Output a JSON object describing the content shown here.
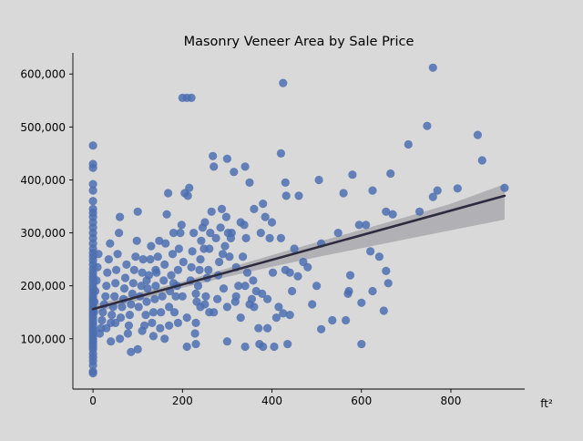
{
  "chart_data": {
    "type": "scatter",
    "title": "Masonry Veneer Area by Sale Price",
    "xlabel": "ft²",
    "ylabel": "",
    "xlim": [
      -45,
      965
    ],
    "ylim": [
      5000,
      640000
    ],
    "xticks": [
      0,
      200,
      400,
      600,
      800
    ],
    "xtick_labels": [
      "0",
      "200",
      "400",
      "600",
      "800"
    ],
    "yticks": [
      100000,
      200000,
      300000,
      400000,
      500000,
      600000
    ],
    "ytick_labels": [
      "100,000",
      "200,000",
      "300,000",
      "400,000",
      "500,000",
      "600,000"
    ],
    "grid": false,
    "colors": {
      "points": "#4c6fb0",
      "trend_line": "#2e2a3f",
      "confidence_band": "#a3a3a8",
      "background": "#d9d9d9"
    },
    "trend_line": {
      "x": [
        0,
        920
      ],
      "y": [
        156000,
        370000
      ]
    },
    "confidence_band": {
      "x": [
        0,
        100,
        200,
        300,
        400,
        500,
        600,
        700,
        800,
        920
      ],
      "lower": [
        148000,
        172000,
        196000,
        217000,
        236000,
        254000,
        271000,
        288000,
        305000,
        325000
      ],
      "upper": [
        164000,
        186000,
        208000,
        233000,
        258000,
        282000,
        306000,
        330000,
        355000,
        392000
      ]
    },
    "points": [
      [
        0,
        465000
      ],
      [
        0,
        430000
      ],
      [
        0,
        423000
      ],
      [
        0,
        392000
      ],
      [
        0,
        380000
      ],
      [
        0,
        360000
      ],
      [
        0,
        345000
      ],
      [
        0,
        338000
      ],
      [
        0,
        330000
      ],
      [
        0,
        320000
      ],
      [
        0,
        310000
      ],
      [
        0,
        300000
      ],
      [
        0,
        290000
      ],
      [
        0,
        280000
      ],
      [
        0,
        270000
      ],
      [
        0,
        262000
      ],
      [
        0,
        255000
      ],
      [
        0,
        248000
      ],
      [
        0,
        240000
      ],
      [
        0,
        232000
      ],
      [
        0,
        225000
      ],
      [
        0,
        218000
      ],
      [
        0,
        212000
      ],
      [
        0,
        205000
      ],
      [
        0,
        198000
      ],
      [
        0,
        192000
      ],
      [
        0,
        186000
      ],
      [
        0,
        180000
      ],
      [
        0,
        175000
      ],
      [
        0,
        170000
      ],
      [
        0,
        165000
      ],
      [
        0,
        160000
      ],
      [
        0,
        155000
      ],
      [
        0,
        150000
      ],
      [
        0,
        145000
      ],
      [
        0,
        140000
      ],
      [
        0,
        135000
      ],
      [
        0,
        130000
      ],
      [
        0,
        125000
      ],
      [
        0,
        120000
      ],
      [
        0,
        115000
      ],
      [
        0,
        110000
      ],
      [
        0,
        105000
      ],
      [
        0,
        100000
      ],
      [
        0,
        95000
      ],
      [
        0,
        90000
      ],
      [
        0,
        85000
      ],
      [
        0,
        80000
      ],
      [
        0,
        72000
      ],
      [
        0,
        65000
      ],
      [
        0,
        58000
      ],
      [
        0,
        50000
      ],
      [
        0,
        38000
      ],
      [
        0,
        35000
      ],
      [
        600,
        90000
      ],
      [
        660,
        205000
      ],
      [
        655,
        228000
      ],
      [
        650,
        153000
      ],
      [
        640,
        255000
      ],
      [
        625,
        190000
      ],
      [
        620,
        265000
      ],
      [
        610,
        315000
      ],
      [
        600,
        168000
      ],
      [
        595,
        315000
      ],
      [
        575,
        220000
      ],
      [
        572,
        190000
      ],
      [
        570,
        185000
      ],
      [
        565,
        135000
      ],
      [
        560,
        375000
      ],
      [
        548,
        300000
      ],
      [
        535,
        135000
      ],
      [
        510,
        118000
      ],
      [
        510,
        280000
      ],
      [
        505,
        400000
      ],
      [
        500,
        200000
      ],
      [
        490,
        165000
      ],
      [
        480,
        235000
      ],
      [
        470,
        245000
      ],
      [
        460,
        370000
      ],
      [
        458,
        218000
      ],
      [
        450,
        270000
      ],
      [
        445,
        190000
      ],
      [
        440,
        225000
      ],
      [
        440,
        145000
      ],
      [
        435,
        90000
      ],
      [
        432,
        370000
      ],
      [
        430,
        230000
      ],
      [
        430,
        395000
      ],
      [
        425,
        148000
      ],
      [
        420,
        450000
      ],
      [
        420,
        290000
      ],
      [
        415,
        160000
      ],
      [
        410,
        140000
      ],
      [
        405,
        85000
      ],
      [
        402,
        225000
      ],
      [
        400,
        320000
      ],
      [
        395,
        290000
      ],
      [
        390,
        175000
      ],
      [
        385,
        330000
      ],
      [
        380,
        355000
      ],
      [
        378,
        185000
      ],
      [
        375,
        300000
      ],
      [
        372,
        90000
      ],
      [
        370,
        120000
      ],
      [
        365,
        190000
      ],
      [
        360,
        345000
      ],
      [
        358,
        210000
      ],
      [
        355,
        175000
      ],
      [
        350,
        395000
      ],
      [
        345,
        225000
      ],
      [
        342,
        290000
      ],
      [
        340,
        425000
      ],
      [
        338,
        315000
      ],
      [
        335,
        255000
      ],
      [
        330,
        320000
      ],
      [
        325,
        200000
      ],
      [
        320,
        235000
      ],
      [
        318,
        170000
      ],
      [
        315,
        415000
      ],
      [
        310,
        300000
      ],
      [
        308,
        290000
      ],
      [
        305,
        255000
      ],
      [
        302,
        300000
      ],
      [
        300,
        440000
      ],
      [
        298,
        330000
      ],
      [
        295,
        275000
      ],
      [
        292,
        195000
      ],
      [
        290,
        260000
      ],
      [
        288,
        345000
      ],
      [
        285,
        310000
      ],
      [
        282,
        245000
      ],
      [
        280,
        220000
      ],
      [
        278,
        175000
      ],
      [
        275,
        290000
      ],
      [
        270,
        425000
      ],
      [
        268,
        445000
      ],
      [
        265,
        340000
      ],
      [
        262,
        300000
      ],
      [
        260,
        270000
      ],
      [
        258,
        230000
      ],
      [
        255,
        215000
      ],
      [
        252,
        180000
      ],
      [
        250,
        320000
      ],
      [
        248,
        270000
      ],
      [
        245,
        310000
      ],
      [
        242,
        285000
      ],
      [
        240,
        250000
      ],
      [
        238,
        230000
      ],
      [
        235,
        200000
      ],
      [
        232,
        170000
      ],
      [
        230,
        130000
      ],
      [
        228,
        110000
      ],
      [
        225,
        300000
      ],
      [
        222,
        265000
      ],
      [
        220,
        235000
      ],
      [
        218,
        210000
      ],
      [
        215,
        385000
      ],
      [
        212,
        370000
      ],
      [
        210,
        555000
      ],
      [
        205,
        375000
      ],
      [
        202,
        245000
      ],
      [
        200,
        555000
      ],
      [
        198,
        315000
      ],
      [
        195,
        300000
      ],
      [
        192,
        270000
      ],
      [
        190,
        230000
      ],
      [
        188,
        200000
      ],
      [
        185,
        180000
      ],
      [
        182,
        150000
      ],
      [
        180,
        300000
      ],
      [
        178,
        260000
      ],
      [
        175,
        220000
      ],
      [
        172,
        190000
      ],
      [
        170,
        160000
      ],
      [
        168,
        375000
      ],
      [
        165,
        335000
      ],
      [
        162,
        280000
      ],
      [
        160,
        240000
      ],
      [
        158,
        210000
      ],
      [
        155,
        180000
      ],
      [
        152,
        150000
      ],
      [
        150,
        120000
      ],
      [
        148,
        285000
      ],
      [
        145,
        255000
      ],
      [
        142,
        225000
      ],
      [
        140,
        200000
      ],
      [
        138,
        175000
      ],
      [
        135,
        150000
      ],
      [
        132,
        130000
      ],
      [
        130,
        275000
      ],
      [
        128,
        250000
      ],
      [
        125,
        220000
      ],
      [
        122,
        195000
      ],
      [
        120,
        170000
      ],
      [
        118,
        145000
      ],
      [
        115,
        125000
      ],
      [
        112,
        250000
      ],
      [
        110,
        225000
      ],
      [
        108,
        200000
      ],
      [
        105,
        180000
      ],
      [
        102,
        160000
      ],
      [
        100,
        340000
      ],
      [
        98,
        285000
      ],
      [
        95,
        255000
      ],
      [
        92,
        230000
      ],
      [
        90,
        205000
      ],
      [
        88,
        185000
      ],
      [
        85,
        165000
      ],
      [
        82,
        145000
      ],
      [
        80,
        125000
      ],
      [
        78,
        110000
      ],
      [
        75,
        240000
      ],
      [
        72,
        215000
      ],
      [
        70,
        195000
      ],
      [
        68,
        175000
      ],
      [
        65,
        160000
      ],
      [
        62,
        140000
      ],
      [
        60,
        330000
      ],
      [
        58,
        300000
      ],
      [
        55,
        260000
      ],
      [
        52,
        230000
      ],
      [
        50,
        205000
      ],
      [
        48,
        180000
      ],
      [
        45,
        160000
      ],
      [
        42,
        145000
      ],
      [
        40,
        130000
      ],
      [
        38,
        280000
      ],
      [
        35,
        250000
      ],
      [
        32,
        225000
      ],
      [
        30,
        200000
      ],
      [
        28,
        180000
      ],
      [
        25,
        165000
      ],
      [
        22,
        150000
      ],
      [
        20,
        135000
      ],
      [
        18,
        120000
      ],
      [
        15,
        110000
      ],
      [
        12,
        260000
      ],
      [
        10,
        235000
      ],
      [
        8,
        210000
      ],
      [
        5,
        190000
      ],
      [
        3,
        170000
      ],
      [
        2,
        150000
      ],
      [
        760,
        612000
      ],
      [
        747,
        502000
      ],
      [
        705,
        467000
      ],
      [
        665,
        412000
      ],
      [
        655,
        340000
      ],
      [
        670,
        335000
      ],
      [
        625,
        380000
      ],
      [
        580,
        410000
      ],
      [
        730,
        340000
      ],
      [
        760,
        368000
      ],
      [
        770,
        380000
      ],
      [
        815,
        384000
      ],
      [
        860,
        485000
      ],
      [
        870,
        437000
      ],
      [
        920,
        385000
      ],
      [
        425,
        583000
      ],
      [
        220,
        555000
      ],
      [
        340,
        200000
      ],
      [
        360,
        160000
      ],
      [
        260,
        150000
      ],
      [
        240,
        160000
      ],
      [
        210,
        140000
      ],
      [
        190,
        130000
      ],
      [
        170,
        125000
      ],
      [
        160,
        100000
      ],
      [
        135,
        105000
      ],
      [
        110,
        115000
      ],
      [
        100,
        80000
      ],
      [
        85,
        75000
      ],
      [
        60,
        100000
      ],
      [
        50,
        130000
      ],
      [
        30,
        120000
      ],
      [
        40,
        95000
      ],
      [
        120,
        210000
      ],
      [
        140,
        230000
      ],
      [
        180,
        205000
      ],
      [
        200,
        180000
      ],
      [
        230,
        185000
      ],
      [
        250,
        165000
      ],
      [
        270,
        150000
      ],
      [
        300,
        160000
      ],
      [
        320,
        180000
      ],
      [
        330,
        140000
      ],
      [
        350,
        165000
      ],
      [
        390,
        120000
      ],
      [
        230,
        90000
      ],
      [
        210,
        85000
      ],
      [
        300,
        95000
      ],
      [
        340,
        85000
      ],
      [
        380,
        85000
      ]
    ]
  }
}
